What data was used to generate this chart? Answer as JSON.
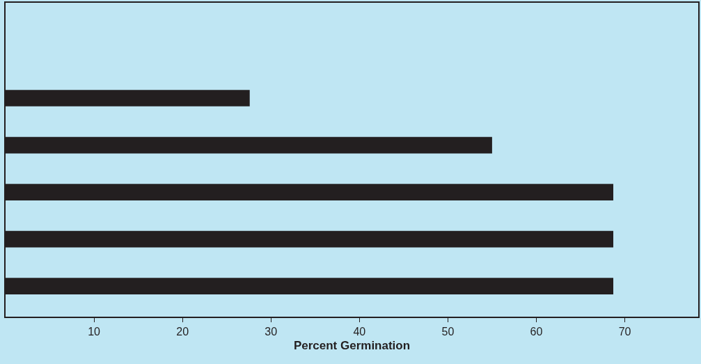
{
  "chart_data": {
    "type": "bar",
    "orientation": "horizontal",
    "xlabel": "Percent Germination",
    "categories": [
      null,
      null,
      null,
      null,
      null
    ],
    "values": [
      27.6,
      55.0,
      68.7,
      68.7,
      68.7
    ],
    "color": "#231f20",
    "xlim": [
      0,
      78.3
    ],
    "xticks": [
      10,
      20,
      30,
      40,
      50,
      60,
      70
    ],
    "grid": false
  }
}
